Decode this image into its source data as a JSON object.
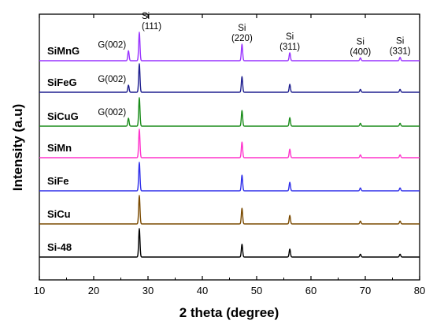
{
  "chart_data": {
    "type": "line",
    "title": "",
    "xlabel": "2 theta (degree)",
    "ylabel": "Intensity (a.u)",
    "xlim": [
      10,
      80
    ],
    "xticks": [
      10,
      20,
      30,
      40,
      50,
      60,
      70,
      80
    ],
    "yticks_shown": false,
    "grid": false,
    "legend": "none (labels drawn beside each curve)",
    "series": [
      {
        "name": "SiMnG",
        "color": "#9933ff",
        "peaks": [
          {
            "x": 26.4,
            "height": 0.35
          },
          {
            "x": 28.4,
            "height": 1.0
          },
          {
            "x": 47.3,
            "height": 0.58
          },
          {
            "x": 56.1,
            "height": 0.28
          },
          {
            "x": 69.1,
            "height": 0.1
          },
          {
            "x": 76.4,
            "height": 0.12
          }
        ]
      },
      {
        "name": "SiFeG",
        "color": "#1f1f8f",
        "peaks": [
          {
            "x": 26.4,
            "height": 0.25
          },
          {
            "x": 28.4,
            "height": 1.0
          },
          {
            "x": 47.3,
            "height": 0.55
          },
          {
            "x": 56.1,
            "height": 0.28
          },
          {
            "x": 69.1,
            "height": 0.1
          },
          {
            "x": 76.4,
            "height": 0.1
          }
        ]
      },
      {
        "name": "SiCuG",
        "color": "#1a8c1a",
        "peaks": [
          {
            "x": 26.4,
            "height": 0.28
          },
          {
            "x": 28.4,
            "height": 1.0
          },
          {
            "x": 47.3,
            "height": 0.55
          },
          {
            "x": 56.1,
            "height": 0.3
          },
          {
            "x": 69.1,
            "height": 0.1
          },
          {
            "x": 76.4,
            "height": 0.1
          }
        ]
      },
      {
        "name": "SiMn",
        "color": "#ff33cc",
        "peaks": [
          {
            "x": 28.4,
            "height": 1.0
          },
          {
            "x": 47.3,
            "height": 0.55
          },
          {
            "x": 56.1,
            "height": 0.3
          },
          {
            "x": 69.1,
            "height": 0.1
          },
          {
            "x": 76.4,
            "height": 0.1
          }
        ]
      },
      {
        "name": "SiFe",
        "color": "#2e2eea",
        "peaks": [
          {
            "x": 28.4,
            "height": 1.0
          },
          {
            "x": 47.3,
            "height": 0.55
          },
          {
            "x": 56.1,
            "height": 0.3
          },
          {
            "x": 69.1,
            "height": 0.1
          },
          {
            "x": 76.4,
            "height": 0.1
          }
        ]
      },
      {
        "name": "SiCu",
        "color": "#7a4a00",
        "peaks": [
          {
            "x": 28.4,
            "height": 1.0
          },
          {
            "x": 47.3,
            "height": 0.55
          },
          {
            "x": 56.1,
            "height": 0.3
          },
          {
            "x": 69.1,
            "height": 0.1
          },
          {
            "x": 76.4,
            "height": 0.1
          }
        ]
      },
      {
        "name": "Si-48",
        "color": "#000000",
        "peaks": [
          {
            "x": 28.4,
            "height": 1.0
          },
          {
            "x": 47.3,
            "height": 0.45
          },
          {
            "x": 56.1,
            "height": 0.28
          },
          {
            "x": 69.1,
            "height": 0.1
          },
          {
            "x": 76.4,
            "height": 0.1
          }
        ]
      }
    ],
    "annotations": [
      {
        "series": "SiMnG",
        "lines": [
          "G(002)"
        ],
        "x": 26.4
      },
      {
        "series": "SiMnG",
        "lines": [
          "Si",
          "(111)"
        ],
        "x": 28.4
      },
      {
        "series": "SiMnG",
        "lines": [
          "Si",
          "(220)"
        ],
        "x": 47.3
      },
      {
        "series": "SiMnG",
        "lines": [
          "Si",
          "(311)"
        ],
        "x": 56.1
      },
      {
        "series": "SiMnG",
        "lines": [
          "Si",
          "(400)"
        ],
        "x": 69.1
      },
      {
        "series": "SiMnG",
        "lines": [
          "Si",
          "(331)"
        ],
        "x": 76.4
      },
      {
        "series": "SiFeG",
        "lines": [
          "G(002)"
        ],
        "x": 26.4
      },
      {
        "series": "SiCuG",
        "lines": [
          "G(002)"
        ],
        "x": 26.4
      }
    ]
  }
}
